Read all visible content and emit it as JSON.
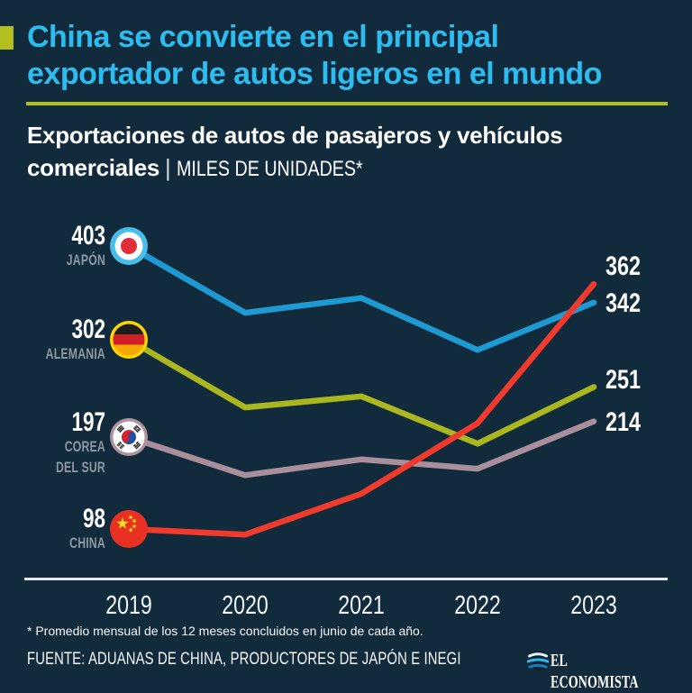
{
  "colors": {
    "background": "#122b3c",
    "title": "#2dbcf0",
    "accent": "#b2bf1f",
    "axis": "#e6edf2",
    "label_gray": "#8c98a4",
    "white": "#ffffff"
  },
  "header": {
    "title_line1": "China se convierte en el principal",
    "title_line2": "exportador de autos ligeros en el mundo",
    "subtitle_line1": "Exportaciones de autos de pasajeros y vehículos",
    "subtitle_line2_bold": "comerciales",
    "subtitle_separator": "|",
    "subtitle_unit": "MILES DE UNIDADES*"
  },
  "chart_data": {
    "type": "line",
    "title": "Exportaciones de autos de pasajeros y vehículos comerciales",
    "unit": "miles de unidades",
    "x": [
      "2019",
      "2020",
      "2021",
      "2022",
      "2023"
    ],
    "ylim": [
      80,
      420
    ],
    "grid": false,
    "y_axis_shown": false,
    "legend_position": "left-flags",
    "series": [
      {
        "id": "japan",
        "name": "JAPÓN",
        "color": "#1d9ad2",
        "values": [
          403,
          331,
          347,
          291,
          342
        ],
        "label_start": "403",
        "label_end": "342"
      },
      {
        "id": "germany",
        "name": "ALEMANIA",
        "color": "#abb71e",
        "values": [
          302,
          229,
          241,
          190,
          251
        ],
        "label_start": "302",
        "label_end": "251"
      },
      {
        "id": "korea",
        "name": "COREA DEL SUR",
        "color": "#a98f9b",
        "values": [
          197,
          156,
          173,
          163,
          214
        ],
        "label_start": "197",
        "label_end": "214"
      },
      {
        "id": "china",
        "name": "CHINA",
        "color": "#f13a2e",
        "values": [
          98,
          92,
          136,
          212,
          362
        ],
        "label_start": "98",
        "label_end": "362"
      }
    ]
  },
  "left_labels": [
    {
      "value": "403",
      "name_line1": "JAPÓN",
      "name_line2": ""
    },
    {
      "value": "302",
      "name_line1": "ALEMANIA",
      "name_line2": ""
    },
    {
      "value": "197",
      "name_line1": "COREA",
      "name_line2": "DEL SUR"
    },
    {
      "value": "98",
      "name_line1": "CHINA",
      "name_line2": ""
    }
  ],
  "right_labels": [
    {
      "value": "362",
      "series": "china"
    },
    {
      "value": "342",
      "series": "japan"
    },
    {
      "value": "251",
      "series": "germany"
    },
    {
      "value": "214",
      "series": "korea"
    }
  ],
  "x_axis": {
    "labels": [
      "2019",
      "2020",
      "2021",
      "2022",
      "2023"
    ]
  },
  "footer": {
    "footnote": "* Promedio mensual de los 12 meses concluidos en junio de cada año.",
    "source": "FUENTE: ADUANAS DE CHINA, PRODUCTORES DE JAPÓN E INEGI",
    "brand": "EL ECONOMISTA"
  }
}
